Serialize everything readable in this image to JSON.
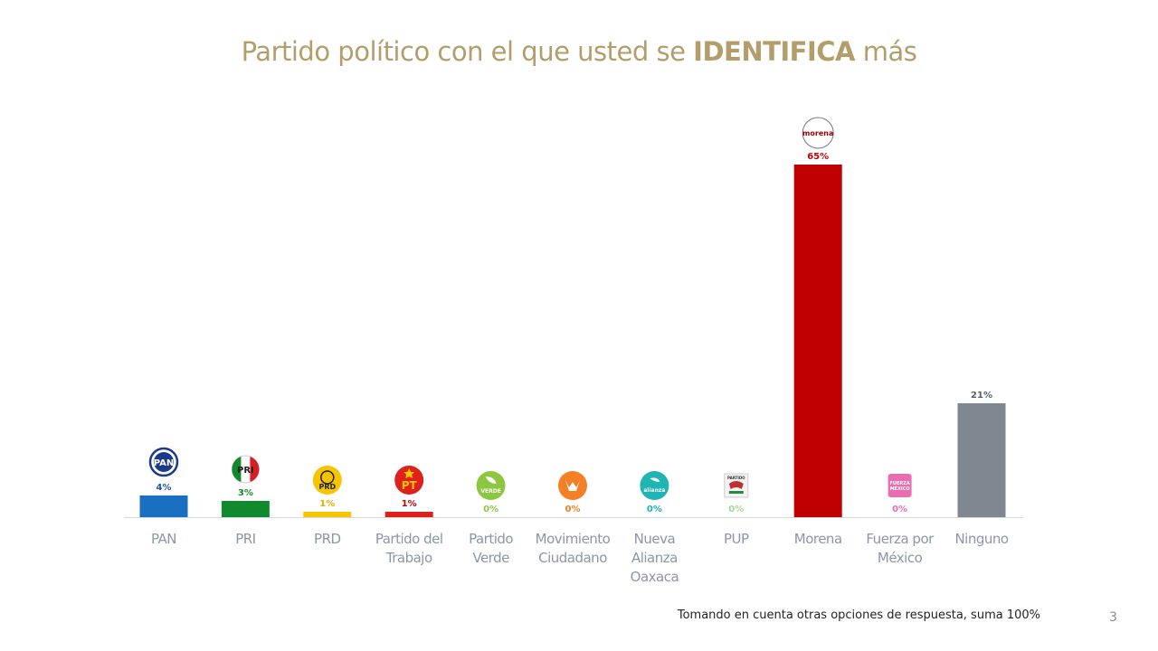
{
  "title": {
    "prefix": "Partido político con el que usted se",
    "emphasis": "IDENTIFICA",
    "suffix": "más"
  },
  "chart_data": {
    "type": "bar",
    "categories": [
      "PAN",
      "PRI",
      "PRD",
      "Partido del Trabajo",
      "Partido Verde",
      "Movimiento Ciudadano",
      "Nueva Alianza Oaxaca",
      "PUP",
      "Morena",
      "Fuerza por México",
      "Ninguno"
    ],
    "category_lines": [
      [
        "PAN"
      ],
      [
        "PRI"
      ],
      [
        "PRD"
      ],
      [
        "Partido del",
        "Trabajo"
      ],
      [
        "Partido",
        "Verde"
      ],
      [
        "Movimiento",
        "Ciudadano"
      ],
      [
        "Nueva",
        "Alianza",
        "Oaxaca"
      ],
      [
        "PUP"
      ],
      [
        "Morena"
      ],
      [
        "Fuerza por",
        "México"
      ],
      [
        "Ninguno"
      ]
    ],
    "values": [
      4,
      3,
      1,
      1,
      0,
      0,
      0,
      0,
      65,
      0,
      21
    ],
    "value_labels": [
      "4%",
      "3%",
      "1%",
      "1%",
      "0%",
      "0%",
      "0%",
      "0%",
      "65%",
      "0%",
      "21%"
    ],
    "colors": [
      "#1a6fc0",
      "#118a2d",
      "#f6c500",
      "#e0201c",
      "#8dc63f",
      "#f47f24",
      "#1fb5b5",
      "#a8d59a",
      "#c00000",
      "#e86eb0",
      "#7f8891"
    ],
    "label_colors": [
      "#1a5ca8",
      "#118a2d",
      "#e0b000",
      "#c00000",
      "#8dc63f",
      "#f47f24",
      "#1fb5b5",
      "#a8d59a",
      "#c00000",
      "#e86eb0",
      "#555f68"
    ],
    "logos": [
      {
        "icon": "pan-logo-icon",
        "text": "PAN"
      },
      {
        "icon": "pri-logo-icon",
        "text": "PRI"
      },
      {
        "icon": "prd-logo-icon",
        "text": "PRD"
      },
      {
        "icon": "pt-logo-icon",
        "text": "PT"
      },
      {
        "icon": "verde-logo-icon",
        "text": "VERDE"
      },
      {
        "icon": "movimiento-ciudadano-logo-icon",
        "text": "MOVIMIENTO CIUDADANO"
      },
      {
        "icon": "nueva-alianza-logo-icon",
        "text": "alianza"
      },
      {
        "icon": "pup-logo-icon",
        "text": "PARTIDO"
      },
      {
        "icon": "morena-logo-icon",
        "text": "morena"
      },
      {
        "icon": "fuerza-por-mexico-logo-icon",
        "text": "FUERZA MÉXICO"
      },
      null
    ],
    "xlabel": "",
    "ylabel": "",
    "ylim": [
      0,
      65
    ],
    "grid": false,
    "legend": "none"
  },
  "footnote": "Tomando en cuenta otras opciones de respuesta, suma 100%",
  "page_number": "3"
}
